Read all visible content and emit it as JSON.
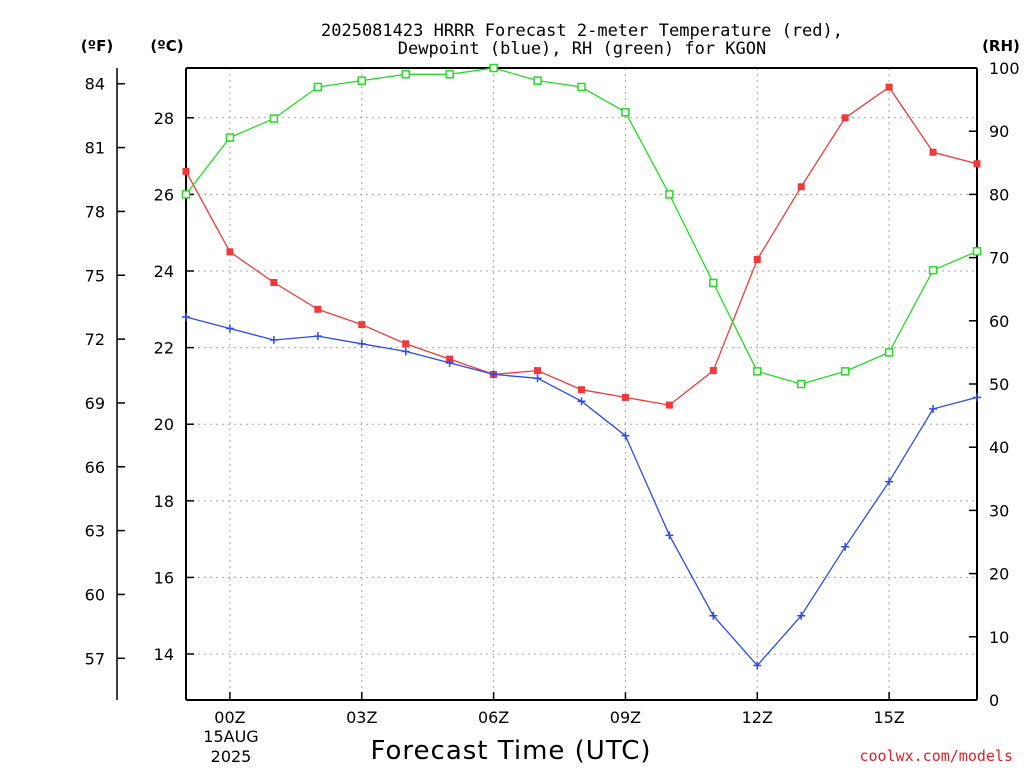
{
  "title": {
    "line1": "2025081423 HRRR Forecast 2-meter Temperature (red),",
    "line2": "Dewpoint (blue), RH (green) for KGON"
  },
  "units": {
    "f": "(ºF)",
    "c": "(ºC)",
    "rh": "(RH)"
  },
  "x_axis": {
    "label": "Forecast Time (UTC)",
    "date_day": "15AUG",
    "date_year": "2025"
  },
  "credit": "coolwx.com/models",
  "colors": {
    "temperature": "#f03a3a",
    "dewpoint": "#2a4bf0",
    "rh": "#22dd22",
    "frame": "#000000",
    "grid": "#a8a8a8"
  },
  "chart_data": {
    "type": "line",
    "x_unit": "hours UTC relative to 2025-08-15 00Z",
    "x": [
      -1,
      0,
      1,
      2,
      3,
      4,
      5,
      6,
      7,
      8,
      9,
      10,
      11,
      12,
      13,
      14,
      15,
      16,
      17
    ],
    "xlim": [
      -1,
      17
    ],
    "x_ticks": [
      {
        "value": 0,
        "label": "00Z"
      },
      {
        "value": 3,
        "label": "03Z"
      },
      {
        "value": 6,
        "label": "06Z"
      },
      {
        "value": 9,
        "label": "09Z"
      },
      {
        "value": 12,
        "label": "12Z"
      },
      {
        "value": 15,
        "label": "15Z"
      }
    ],
    "x_grid": [
      0,
      3,
      6,
      9,
      12,
      15
    ],
    "left_axis_c": {
      "range": [
        12.8,
        29.3
      ],
      "ticks": [
        14,
        16,
        18,
        20,
        22,
        24,
        26,
        28
      ]
    },
    "left_axis_f": {
      "ticks": [
        57,
        60,
        63,
        66,
        69,
        72,
        75,
        78,
        81,
        84
      ]
    },
    "right_axis_rh": {
      "range": [
        0,
        100
      ],
      "ticks": [
        0,
        10,
        20,
        30,
        40,
        50,
        60,
        70,
        80,
        90,
        100
      ]
    },
    "y_grid_c": [
      14,
      16,
      18,
      20,
      22,
      24,
      26,
      28
    ],
    "series": [
      {
        "name": "Temperature",
        "axis": "c",
        "marker": "filled-square",
        "values": [
          26.6,
          24.5,
          23.7,
          23.0,
          22.6,
          22.1,
          21.7,
          21.3,
          21.4,
          20.9,
          20.7,
          20.5,
          21.4,
          24.3,
          26.2,
          28.0,
          28.8,
          27.1,
          26.8
        ]
      },
      {
        "name": "Dewpoint",
        "axis": "c",
        "marker": "plus",
        "values": [
          22.8,
          22.5,
          22.2,
          22.3,
          22.1,
          21.9,
          21.6,
          21.3,
          21.2,
          20.6,
          19.7,
          17.1,
          15.0,
          13.7,
          15.0,
          16.8,
          18.5,
          20.4,
          20.7
        ]
      },
      {
        "name": "RH",
        "axis": "rh",
        "marker": "open-square",
        "values": [
          80,
          89,
          92,
          97,
          98,
          99,
          99,
          100,
          98,
          97,
          93,
          80,
          66,
          52,
          50,
          52,
          55,
          68,
          71
        ]
      }
    ]
  }
}
